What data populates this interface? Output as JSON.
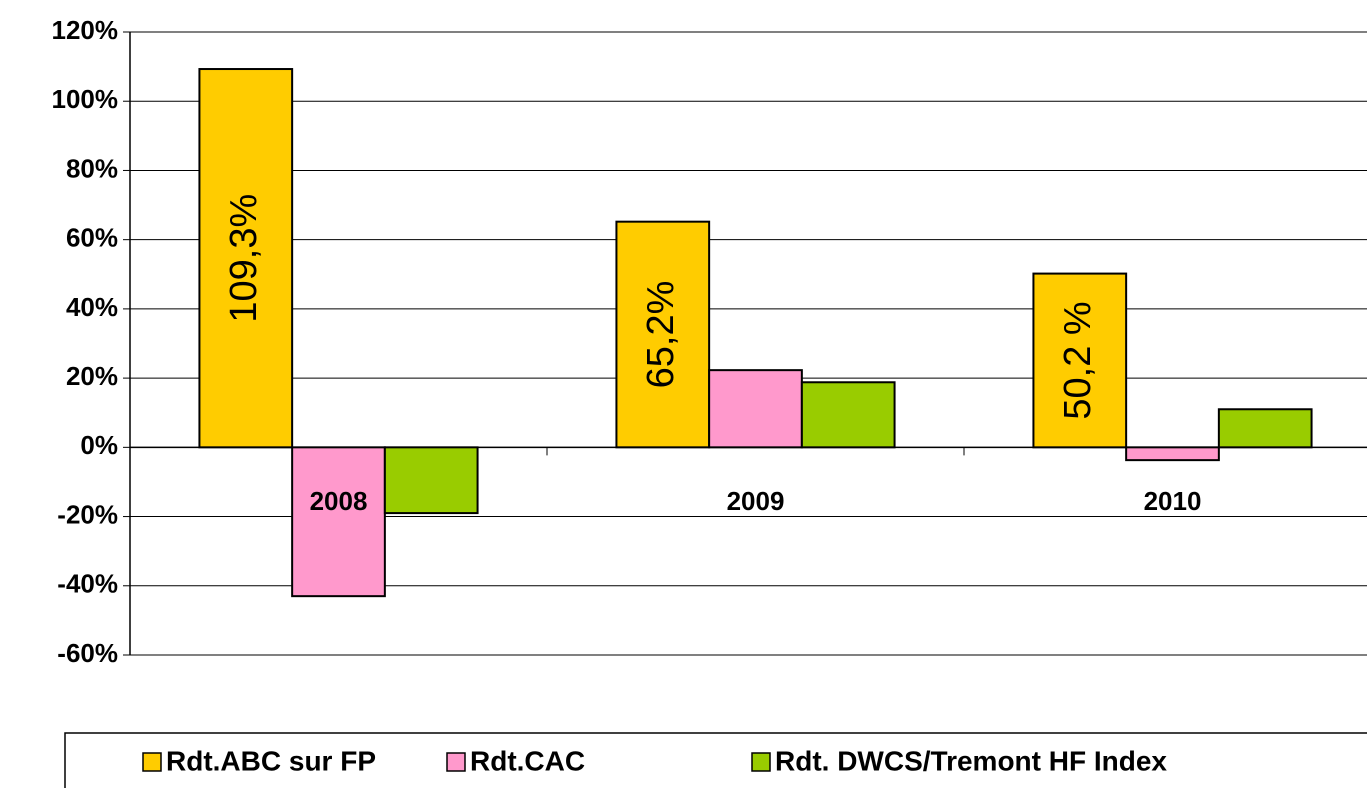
{
  "chart_data": {
    "type": "bar",
    "categories": [
      "2008",
      "2009",
      "2010"
    ],
    "series": [
      {
        "name": "Rdt.ABC sur FP",
        "color": "#ffcc00",
        "values": [
          109.3,
          65.2,
          50.2
        ],
        "value_labels": [
          "109,3%",
          "65,2%",
          "50,2 %"
        ]
      },
      {
        "name": "Rdt.CAC",
        "color": "#ff99cc",
        "values": [
          -43,
          22.3,
          -3.7
        ]
      },
      {
        "name": "Rdt. DWCS/Tremont HF Index",
        "color": "#99cc00",
        "values": [
          -19,
          18.8,
          11
        ]
      }
    ],
    "ylim": [
      -60,
      120
    ],
    "yticks": [
      {
        "value": -60,
        "label": "-60%"
      },
      {
        "value": -40,
        "label": "-40%"
      },
      {
        "value": -20,
        "label": "-20%"
      },
      {
        "value": 0,
        "label": "0%"
      },
      {
        "value": 20,
        "label": "20%"
      },
      {
        "value": 40,
        "label": "40%"
      },
      {
        "value": 60,
        "label": "60%"
      },
      {
        "value": 80,
        "label": "80%"
      },
      {
        "value": 100,
        "label": "100%"
      },
      {
        "value": 120,
        "label": "120%"
      }
    ],
    "grid": true
  }
}
